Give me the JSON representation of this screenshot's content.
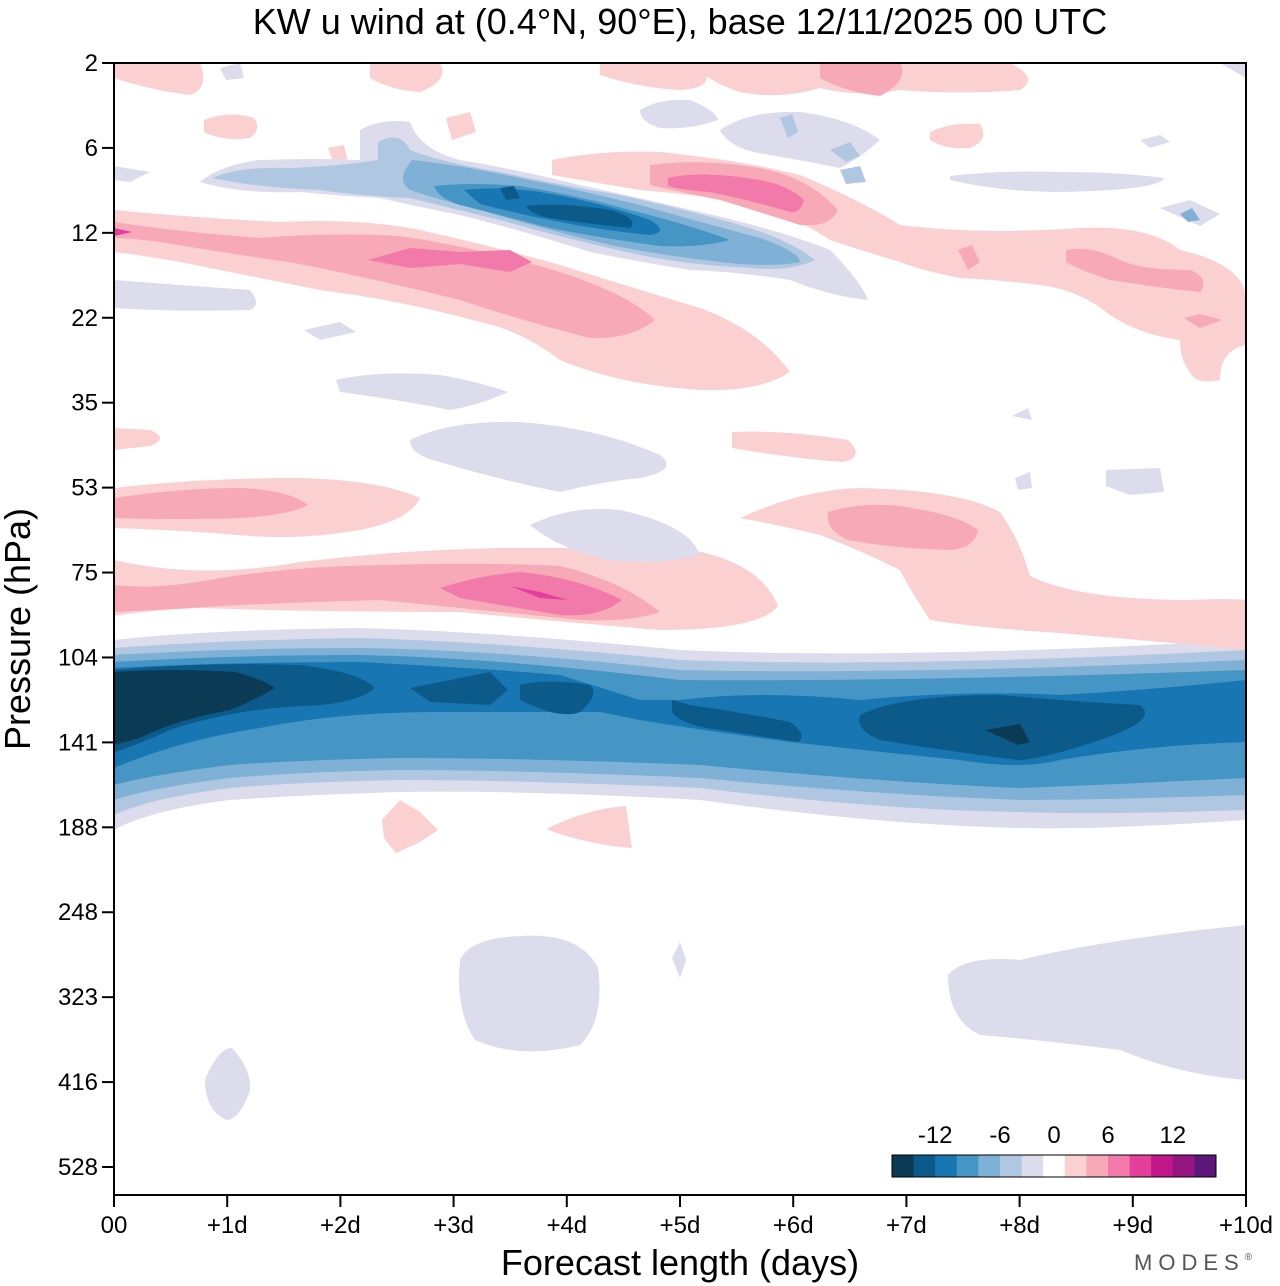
{
  "chart_data": {
    "type": "heatmap",
    "title": "KW u wind at (0.4°N, 90°E),  base 12/11/2025  00 UTC",
    "xlabel": "Forecast length (days)",
    "ylabel": "Pressure (hPa)",
    "x_ticks": [
      "00",
      "+1d",
      "+2d",
      "+3d",
      "+4d",
      "+5d",
      "+6d",
      "+7d",
      "+8d",
      "+9d",
      "+10d"
    ],
    "y_ticks": [
      "2",
      "6",
      "12",
      "22",
      "35",
      "53",
      "75",
      "104",
      "141",
      "188",
      "248",
      "323",
      "416",
      "528"
    ],
    "xlim_days": [
      0,
      10
    ],
    "colorbar": {
      "labels": [
        "-12",
        "-6",
        "0",
        "6",
        "12"
      ],
      "levels": [
        -14,
        -12,
        -10,
        -8,
        -6,
        -4,
        -2,
        2,
        4,
        6,
        8,
        10,
        12,
        14
      ],
      "colors": [
        "#0b3a55",
        "#0b5a8a",
        "#1877b3",
        "#4596c5",
        "#7fb1d6",
        "#b0c7e2",
        "#dcdced",
        "#ffffff",
        "#fbd0d0",
        "#f7a9b8",
        "#f27aab",
        "#e43f9a",
        "#c0168a",
        "#951680",
        "#5c1778"
      ]
    },
    "features": [
      {
        "name": "jet-core-negative",
        "sign": "negative",
        "peak": -14,
        "pressure_hPa": "104-188",
        "days": "0-10"
      },
      {
        "name": "upper-negative-band",
        "sign": "negative",
        "peak": -12,
        "pressure_hPa": "6-18",
        "days": "2.5-6.5"
      },
      {
        "name": "upper-positive-band",
        "sign": "positive",
        "peak": 8,
        "pressure_hPa": "10-30",
        "days": "0-6"
      },
      {
        "name": "positive-band-75hPa",
        "sign": "positive",
        "peak": 10,
        "pressure_hPa": "53-95",
        "days": "0-10"
      },
      {
        "name": "positive-band-53hPa",
        "sign": "positive",
        "peak": 6,
        "pressure_hPa": "45-60",
        "days": "0-3"
      },
      {
        "name": "upper-positive-right",
        "sign": "positive",
        "peak": 8,
        "pressure_hPa": "7-12",
        "days": "4.7-6.3"
      },
      {
        "name": "weak-negative-lower-troposphere",
        "sign": "negative",
        "peak": -2,
        "pressure_hPa": "280-420",
        "days": "3-10"
      }
    ]
  },
  "branding": {
    "logo_text": "MODES",
    "mark": "®"
  }
}
